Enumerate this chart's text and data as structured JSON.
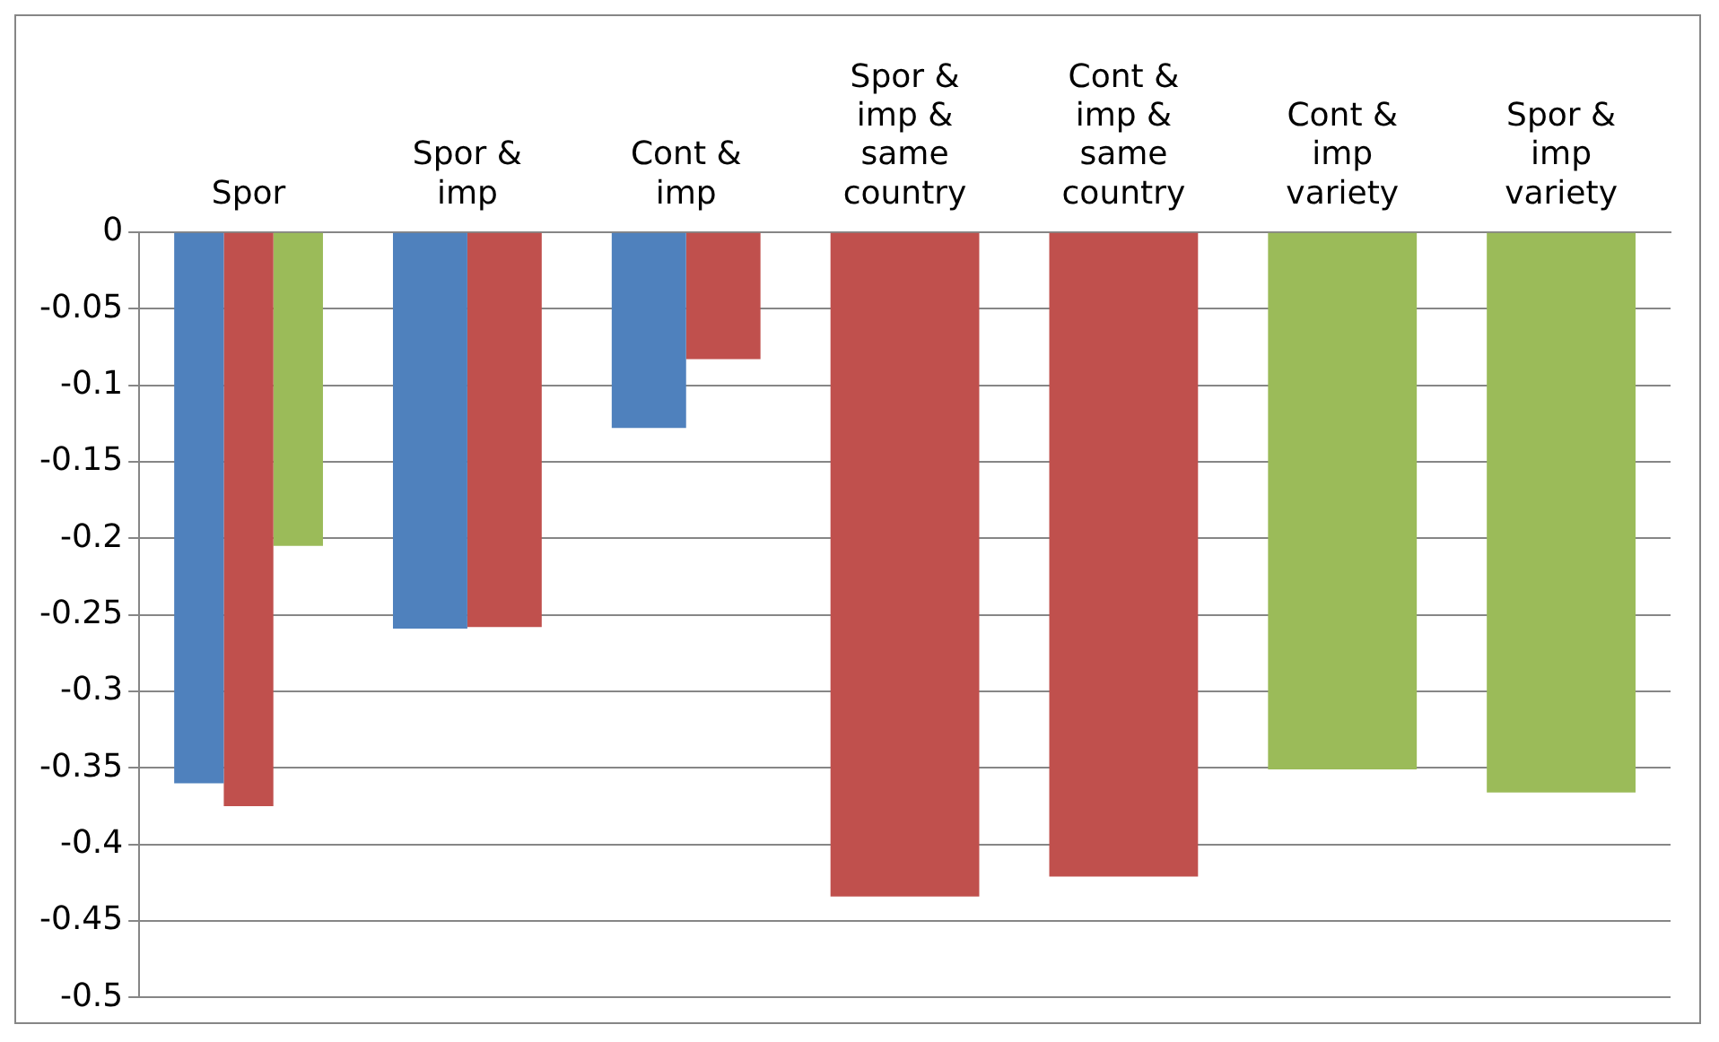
{
  "chart_data": {
    "type": "bar",
    "categories": [
      "Spor",
      "Spor & imp",
      "Cont & imp",
      "Spor & imp & same country",
      "Cont & imp & same country",
      "Cont & imp variety",
      "Spor & imp variety"
    ],
    "series": [
      {
        "color": "#4f81bd",
        "values": [
          -0.36,
          -0.259,
          -0.128,
          null,
          null,
          null,
          null
        ]
      },
      {
        "color": "#c0504d",
        "values": [
          -0.375,
          -0.258,
          -0.083,
          -0.434,
          -0.421,
          null,
          null
        ]
      },
      {
        "color": "#9bbb59",
        "values": [
          -0.205,
          null,
          null,
          null,
          null,
          -0.351,
          -0.366
        ]
      }
    ],
    "ylim": [
      -0.5,
      0
    ],
    "yticks": [
      -0.5,
      -0.45,
      -0.4,
      -0.35,
      -0.3,
      -0.25,
      -0.2,
      -0.15,
      -0.1,
      -0.05,
      0
    ],
    "grid": "y",
    "legend": false
  }
}
